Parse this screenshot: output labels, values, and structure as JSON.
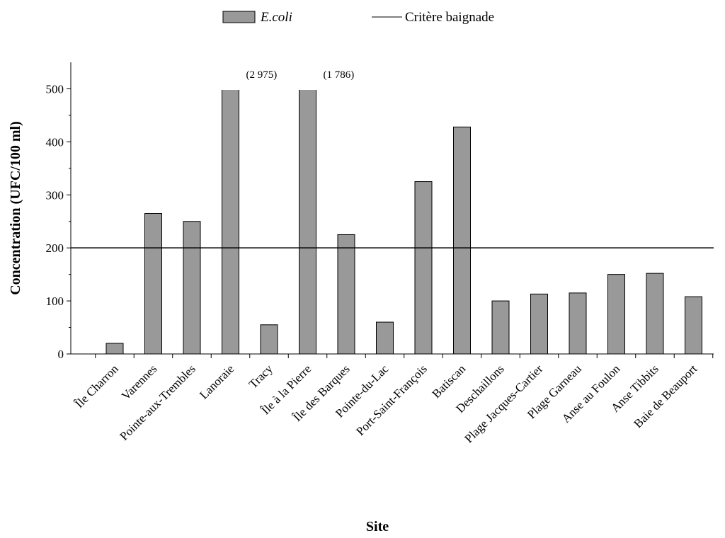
{
  "chart_data": {
    "type": "bar",
    "series_name": "E.coli",
    "color": "#999999",
    "categories": [
      "Île Charron",
      "Varennes",
      "Pointe-aux-Trembles",
      "Lanoraie",
      "Tracy",
      "Île à la Pierre",
      "Île des Barques",
      "Pointe-du-Lac",
      "Port-Saint-François",
      "Batiscan",
      "Deschaillons",
      "Plage Jacques-Cartier",
      "Plage Garneau",
      "Anse au Foulon",
      "Anse Tibbits",
      "Baie de Beauport"
    ],
    "values": [
      20,
      265,
      250,
      2975,
      55,
      1786,
      225,
      60,
      325,
      428,
      100,
      113,
      115,
      150,
      152,
      108
    ],
    "value_labels": [
      null,
      null,
      null,
      "(2 975)",
      null,
      "(1 786)",
      null,
      null,
      null,
      null,
      null,
      null,
      null,
      null,
      null,
      null
    ],
    "reference_line": {
      "name": "Critère baignade",
      "value": 200
    },
    "ylim": [
      0,
      550
    ],
    "yticks": [
      0,
      100,
      200,
      300,
      400,
      500
    ],
    "y_label": "Concentration (UFC/100 ml)",
    "x_label": "Site"
  }
}
